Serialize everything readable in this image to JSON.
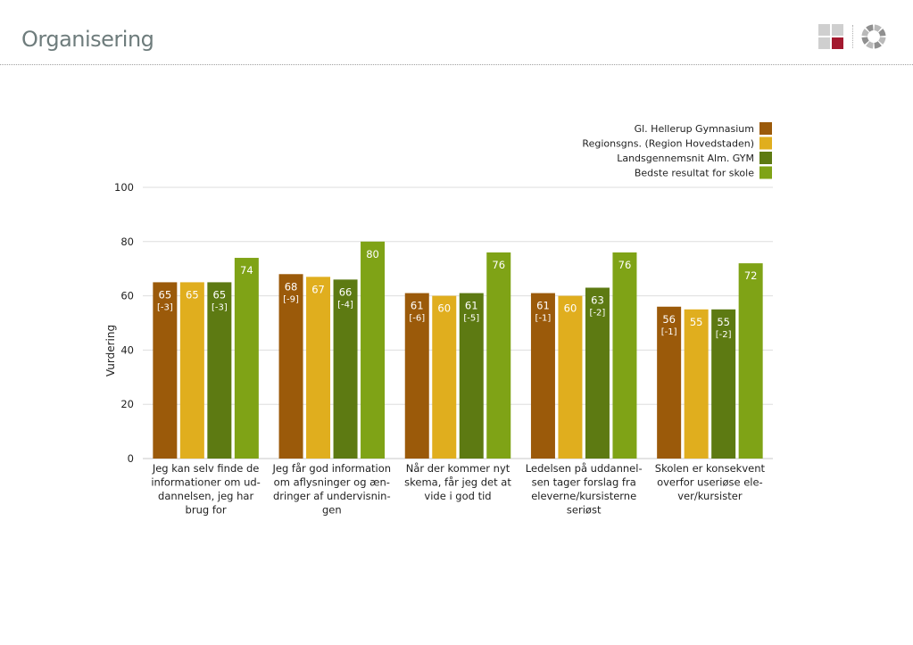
{
  "header": {
    "title": "Organisering",
    "logo_colors": [
      "#cfcfcf",
      "#cfcfcf",
      "#cfcfcf",
      "#a3192f"
    ],
    "logo_icon": "grid-logo-icon",
    "ring_icon": "ring-logo-icon"
  },
  "chart_data": {
    "type": "bar",
    "title": "",
    "xlabel": "",
    "ylabel": "Vurdering",
    "ylim": [
      0,
      100
    ],
    "yticks": [
      0,
      20,
      40,
      60,
      80,
      100
    ],
    "grid": true,
    "legend_position": "top-right",
    "categories": [
      [
        "Jeg kan selv finde de",
        "informationer om ud-",
        "dannelsen, jeg har",
        "brug for"
      ],
      [
        "Jeg får god information",
        "om aflysninger og æn-",
        "dringer af undervisnin-",
        "gen"
      ],
      [
        "Når der kommer nyt",
        "skema, får jeg det at",
        "vide i god tid"
      ],
      [
        "Ledelsen på uddannel-",
        "sen tager forslag fra",
        "eleverne/kursisterne",
        "seriøst"
      ],
      [
        "Skolen er konsekvent",
        "overfor useriøse ele-",
        "ver/kursister"
      ]
    ],
    "series": [
      {
        "name": "Gl. Hellerup Gymnasium",
        "color": "#9b5a0a",
        "values": [
          65,
          68,
          61,
          61,
          56
        ],
        "diffs": [
          "[-3]",
          "[-9]",
          "[-6]",
          "[-1]",
          "[-1]"
        ]
      },
      {
        "name": "Regionsgns. (Region Hovedstaden)",
        "color": "#e0ae1e",
        "values": [
          65,
          67,
          60,
          60,
          55
        ],
        "diffs": [
          null,
          null,
          null,
          null,
          null
        ]
      },
      {
        "name": "Landsgennemsnit Alm. GYM",
        "color": "#5d7a12",
        "values": [
          65,
          66,
          61,
          63,
          55
        ],
        "diffs": [
          "[-3]",
          "[-4]",
          "[-5]",
          "[-2]",
          "[-2]"
        ]
      },
      {
        "name": "Bedste resultat for skole",
        "color": "#7fa316",
        "values": [
          74,
          80,
          76,
          76,
          72
        ],
        "diffs": [
          null,
          null,
          null,
          null,
          null
        ]
      }
    ]
  }
}
